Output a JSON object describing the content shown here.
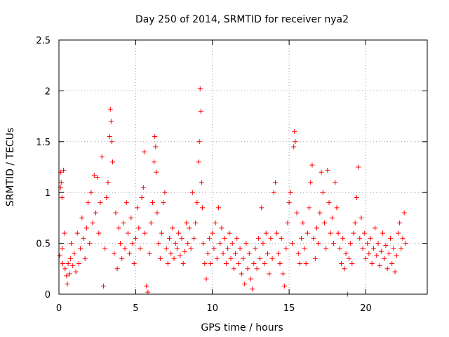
{
  "chart_data": {
    "type": "scatter",
    "title": "Day 250 of 2014, SRMTID for receiver nya2",
    "xlabel": "GPS time / hours",
    "ylabel": "SRMTID / TECUs",
    "xlim": [
      0,
      24
    ],
    "ylim": [
      0,
      2.5
    ],
    "xticks": [
      0,
      5,
      10,
      15,
      20
    ],
    "yticks": [
      0,
      0.5,
      1,
      1.5,
      2,
      2.5
    ],
    "x_tick_labels": [
      "0",
      "5",
      "10",
      "15",
      "20"
    ],
    "y_tick_labels": [
      "0",
      "0.5",
      "1",
      "1.5",
      "2",
      "2.5"
    ],
    "grid": true,
    "marker": "+",
    "series": [
      {
        "name": "SRMTID",
        "color": "#ff0000",
        "points": [
          [
            0.05,
            0.38
          ],
          [
            0.1,
            1.05
          ],
          [
            0.12,
            1.2
          ],
          [
            0.15,
            1.1
          ],
          [
            0.2,
            0.95
          ],
          [
            0.22,
            0.45
          ],
          [
            0.25,
            0.3
          ],
          [
            0.3,
            1.22
          ],
          [
            0.35,
            0.6
          ],
          [
            0.4,
            0.25
          ],
          [
            0.5,
            0.18
          ],
          [
            0.55,
            0.1
          ],
          [
            0.6,
            0.3
          ],
          [
            0.7,
            0.2
          ],
          [
            0.75,
            0.35
          ],
          [
            0.8,
            0.5
          ],
          [
            0.9,
            0.28
          ],
          [
            1.0,
            0.4
          ],
          [
            1.1,
            0.22
          ],
          [
            1.2,
            0.6
          ],
          [
            1.3,
            0.3
          ],
          [
            1.4,
            0.45
          ],
          [
            1.5,
            0.75
          ],
          [
            1.6,
            0.55
          ],
          [
            1.7,
            0.35
          ],
          [
            1.8,
            0.65
          ],
          [
            1.9,
            0.9
          ],
          [
            2.0,
            0.5
          ],
          [
            2.1,
            1.0
          ],
          [
            2.2,
            0.7
          ],
          [
            2.3,
            1.17
          ],
          [
            2.4,
            0.8
          ],
          [
            2.5,
            1.15
          ],
          [
            2.6,
            0.6
          ],
          [
            2.7,
            0.9
          ],
          [
            2.8,
            1.35
          ],
          [
            2.9,
            0.08
          ],
          [
            3.0,
            0.45
          ],
          [
            3.1,
            0.95
          ],
          [
            3.2,
            1.1
          ],
          [
            3.3,
            1.55
          ],
          [
            3.35,
            1.82
          ],
          [
            3.4,
            1.7
          ],
          [
            3.45,
            1.5
          ],
          [
            3.5,
            1.3
          ],
          [
            3.6,
            0.4
          ],
          [
            3.7,
            0.8
          ],
          [
            3.8,
            0.25
          ],
          [
            3.9,
            0.65
          ],
          [
            4.0,
            0.5
          ],
          [
            4.1,
            0.35
          ],
          [
            4.2,
            0.7
          ],
          [
            4.3,
            0.45
          ],
          [
            4.4,
            0.9
          ],
          [
            4.5,
            0.6
          ],
          [
            4.6,
            0.4
          ],
          [
            4.7,
            0.75
          ],
          [
            4.8,
            0.5
          ],
          [
            4.9,
            0.3
          ],
          [
            5.0,
            0.55
          ],
          [
            5.1,
            0.85
          ],
          [
            5.2,
            0.65
          ],
          [
            5.3,
            0.45
          ],
          [
            5.4,
            0.95
          ],
          [
            5.5,
            1.05
          ],
          [
            5.55,
            1.4
          ],
          [
            5.6,
            0.6
          ],
          [
            5.7,
            0.08
          ],
          [
            5.8,
            0.02
          ],
          [
            5.9,
            0.4
          ],
          [
            6.0,
            0.7
          ],
          [
            6.1,
            0.9
          ],
          [
            6.2,
            1.3
          ],
          [
            6.25,
            1.55
          ],
          [
            6.3,
            1.45
          ],
          [
            6.35,
            1.2
          ],
          [
            6.4,
            0.8
          ],
          [
            6.5,
            0.5
          ],
          [
            6.6,
            0.35
          ],
          [
            6.7,
            0.6
          ],
          [
            6.8,
            0.9
          ],
          [
            6.9,
            1.0
          ],
          [
            7.0,
            0.45
          ],
          [
            7.1,
            0.3
          ],
          [
            7.2,
            0.55
          ],
          [
            7.3,
            0.4
          ],
          [
            7.4,
            0.65
          ],
          [
            7.5,
            0.35
          ],
          [
            7.6,
            0.5
          ],
          [
            7.7,
            0.45
          ],
          [
            7.8,
            0.6
          ],
          [
            7.9,
            0.38
          ],
          [
            8.0,
            0.55
          ],
          [
            8.1,
            0.3
          ],
          [
            8.2,
            0.42
          ],
          [
            8.3,
            0.7
          ],
          [
            8.4,
            0.5
          ],
          [
            8.5,
            0.65
          ],
          [
            8.6,
            0.45
          ],
          [
            8.7,
            1.0
          ],
          [
            8.8,
            0.55
          ],
          [
            8.9,
            0.7
          ],
          [
            9.0,
            0.9
          ],
          [
            9.1,
            1.3
          ],
          [
            9.15,
            1.5
          ],
          [
            9.2,
            2.02
          ],
          [
            9.25,
            1.8
          ],
          [
            9.3,
            1.1
          ],
          [
            9.35,
            0.85
          ],
          [
            9.4,
            0.5
          ],
          [
            9.5,
            0.3
          ],
          [
            9.6,
            0.15
          ],
          [
            9.7,
            0.4
          ],
          [
            9.8,
            0.55
          ],
          [
            9.9,
            0.3
          ],
          [
            10.0,
            0.6
          ],
          [
            10.1,
            0.45
          ],
          [
            10.2,
            0.7
          ],
          [
            10.3,
            0.35
          ],
          [
            10.4,
            0.85
          ],
          [
            10.5,
            0.5
          ],
          [
            10.6,
            0.65
          ],
          [
            10.7,
            0.4
          ],
          [
            10.8,
            0.55
          ],
          [
            10.9,
            0.3
          ],
          [
            11.0,
            0.45
          ],
          [
            11.1,
            0.6
          ],
          [
            11.2,
            0.35
          ],
          [
            11.3,
            0.5
          ],
          [
            11.4,
            0.25
          ],
          [
            11.5,
            0.4
          ],
          [
            11.6,
            0.55
          ],
          [
            11.7,
            0.3
          ],
          [
            11.8,
            0.45
          ],
          [
            11.9,
            0.2
          ],
          [
            12.0,
            0.35
          ],
          [
            12.1,
            0.1
          ],
          [
            12.2,
            0.5
          ],
          [
            12.3,
            0.25
          ],
          [
            12.4,
            0.4
          ],
          [
            12.5,
            0.15
          ],
          [
            12.6,
            0.05
          ],
          [
            12.7,
            0.3
          ],
          [
            12.8,
            0.45
          ],
          [
            12.9,
            0.25
          ],
          [
            13.0,
            0.55
          ],
          [
            13.1,
            0.35
          ],
          [
            13.2,
            0.85
          ],
          [
            13.3,
            0.5
          ],
          [
            13.4,
            0.3
          ],
          [
            13.5,
            0.6
          ],
          [
            13.6,
            0.4
          ],
          [
            13.7,
            0.2
          ],
          [
            13.8,
            0.55
          ],
          [
            13.9,
            0.35
          ],
          [
            14.0,
            1.0
          ],
          [
            14.1,
            1.1
          ],
          [
            14.2,
            0.6
          ],
          [
            14.3,
            0.4
          ],
          [
            14.4,
            0.3
          ],
          [
            14.5,
            0.55
          ],
          [
            14.6,
            0.2
          ],
          [
            14.7,
            0.08
          ],
          [
            14.8,
            0.45
          ],
          [
            14.9,
            0.7
          ],
          [
            15.0,
            0.9
          ],
          [
            15.1,
            1.0
          ],
          [
            15.2,
            0.5
          ],
          [
            15.3,
            1.45
          ],
          [
            15.35,
            1.6
          ],
          [
            15.4,
            1.5
          ],
          [
            15.5,
            0.8
          ],
          [
            15.6,
            0.4
          ],
          [
            15.7,
            0.3
          ],
          [
            15.8,
            0.55
          ],
          [
            15.9,
            0.7
          ],
          [
            16.0,
            0.45
          ],
          [
            16.1,
            0.3
          ],
          [
            16.2,
            0.6
          ],
          [
            16.3,
            0.85
          ],
          [
            16.4,
            1.1
          ],
          [
            16.5,
            1.27
          ],
          [
            16.6,
            0.55
          ],
          [
            16.7,
            0.35
          ],
          [
            16.8,
            0.65
          ],
          [
            16.9,
            0.5
          ],
          [
            17.0,
            0.8
          ],
          [
            17.1,
            1.2
          ],
          [
            17.2,
            1.0
          ],
          [
            17.3,
            0.7
          ],
          [
            17.4,
            0.45
          ],
          [
            17.5,
            1.22
          ],
          [
            17.6,
            0.9
          ],
          [
            17.7,
            0.6
          ],
          [
            17.8,
            0.75
          ],
          [
            17.9,
            0.5
          ],
          [
            18.0,
            1.1
          ],
          [
            18.1,
            0.85
          ],
          [
            18.2,
            0.6
          ],
          [
            18.3,
            0.45
          ],
          [
            18.4,
            0.3
          ],
          [
            18.5,
            0.55
          ],
          [
            18.6,
            0.25
          ],
          [
            18.7,
            0.4
          ],
          [
            18.8,
            0.0
          ],
          [
            18.9,
            0.35
          ],
          [
            19.0,
            0.5
          ],
          [
            19.1,
            0.3
          ],
          [
            19.2,
            0.6
          ],
          [
            19.3,
            0.7
          ],
          [
            19.4,
            0.95
          ],
          [
            19.5,
            1.25
          ],
          [
            19.6,
            0.55
          ],
          [
            19.7,
            0.75
          ],
          [
            19.8,
            0.45
          ],
          [
            19.9,
            0.6
          ],
          [
            20.0,
            0.35
          ],
          [
            20.1,
            0.5
          ],
          [
            20.2,
            0.4
          ],
          [
            20.3,
            0.55
          ],
          [
            20.4,
            0.3
          ],
          [
            20.5,
            0.45
          ],
          [
            20.6,
            0.65
          ],
          [
            20.7,
            0.38
          ],
          [
            20.8,
            0.5
          ],
          [
            20.9,
            0.28
          ],
          [
            21.0,
            0.42
          ],
          [
            21.1,
            0.6
          ],
          [
            21.2,
            0.35
          ],
          [
            21.3,
            0.48
          ],
          [
            21.4,
            0.25
          ],
          [
            21.5,
            0.4
          ],
          [
            21.6,
            0.55
          ],
          [
            21.7,
            0.3
          ],
          [
            21.8,
            0.45
          ],
          [
            21.9,
            0.22
          ],
          [
            22.0,
            0.38
          ],
          [
            22.1,
            0.6
          ],
          [
            22.2,
            0.7
          ],
          [
            22.3,
            0.45
          ],
          [
            22.4,
            0.55
          ],
          [
            22.5,
            0.8
          ],
          [
            22.6,
            0.5
          ]
        ]
      }
    ]
  }
}
